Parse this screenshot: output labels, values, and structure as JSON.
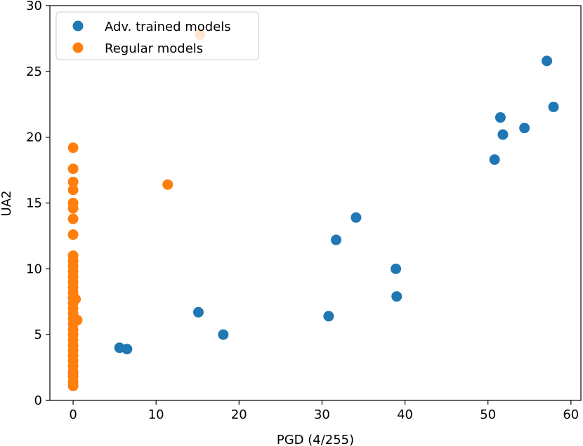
{
  "chart_data": {
    "type": "scatter",
    "title": "",
    "xlabel": "PGD (4/255)",
    "ylabel": "UA2",
    "xlim": [
      -2.8,
      61.2
    ],
    "ylim": [
      0,
      30
    ],
    "xticks": [
      0,
      10,
      20,
      30,
      40,
      50,
      60
    ],
    "yticks": [
      0,
      5,
      10,
      15,
      20,
      25,
      30
    ],
    "grid": false,
    "legend_position": "top-left",
    "series": [
      {
        "name": "Adv. trained models",
        "color": "#1f77b4",
        "points": [
          [
            0.0,
            2.1
          ],
          [
            5.6,
            4.0
          ],
          [
            6.5,
            3.9
          ],
          [
            15.1,
            6.7
          ],
          [
            18.1,
            5.0
          ],
          [
            30.8,
            6.4
          ],
          [
            31.7,
            12.2
          ],
          [
            34.1,
            13.9
          ],
          [
            38.9,
            10.0
          ],
          [
            39.0,
            7.9
          ],
          [
            50.8,
            18.3
          ],
          [
            51.5,
            21.5
          ],
          [
            51.8,
            20.2
          ],
          [
            54.4,
            20.7
          ],
          [
            57.1,
            25.8
          ],
          [
            57.9,
            22.3
          ]
        ]
      },
      {
        "name": "Regular models",
        "color": "#ff7f0e",
        "points": [
          [
            0.0,
            19.2
          ],
          [
            0.0,
            17.6
          ],
          [
            0.0,
            16.6
          ],
          [
            0.0,
            16.0
          ],
          [
            0.0,
            15.0
          ],
          [
            0.0,
            14.6
          ],
          [
            0.0,
            13.8
          ],
          [
            0.0,
            12.6
          ],
          [
            0.0,
            11.0
          ],
          [
            0.0,
            10.6
          ],
          [
            0.0,
            10.2
          ],
          [
            0.0,
            9.8
          ],
          [
            0.0,
            9.4
          ],
          [
            0.0,
            9.0
          ],
          [
            0.0,
            8.6
          ],
          [
            0.0,
            8.2
          ],
          [
            0.0,
            7.8
          ],
          [
            0.0,
            7.4
          ],
          [
            0.0,
            7.0
          ],
          [
            0.0,
            6.6
          ],
          [
            0.0,
            6.2
          ],
          [
            0.0,
            5.8
          ],
          [
            0.0,
            5.4
          ],
          [
            0.0,
            5.0
          ],
          [
            0.0,
            4.6
          ],
          [
            0.0,
            4.2
          ],
          [
            0.0,
            3.8
          ],
          [
            0.0,
            3.4
          ],
          [
            0.0,
            3.0
          ],
          [
            0.0,
            2.6
          ],
          [
            0.0,
            2.2
          ],
          [
            0.0,
            1.8
          ],
          [
            0.0,
            1.4
          ],
          [
            0.0,
            1.1
          ],
          [
            0.3,
            7.7
          ],
          [
            0.5,
            6.1
          ],
          [
            11.4,
            16.4
          ],
          [
            15.3,
            27.8
          ]
        ]
      }
    ]
  }
}
